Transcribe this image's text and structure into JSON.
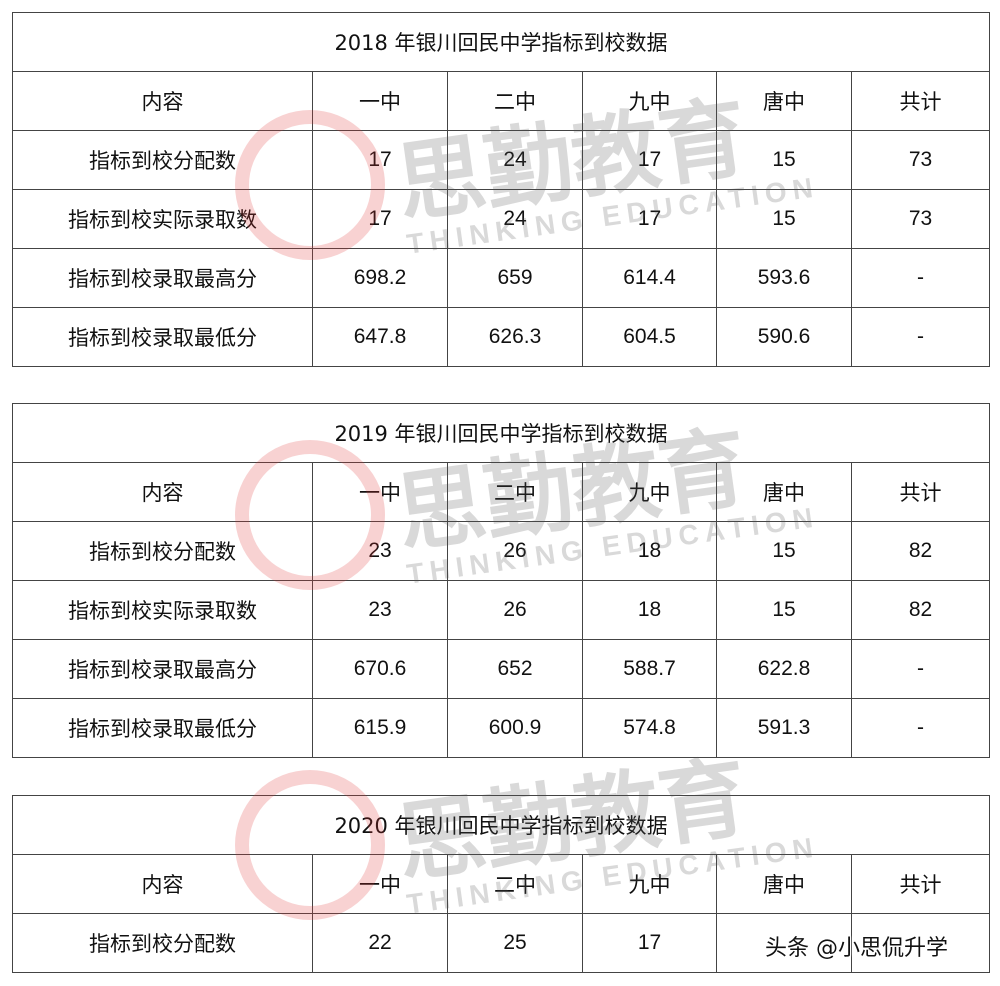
{
  "columns": [
    "内容",
    "一中",
    "二中",
    "九中",
    "唐中",
    "共计"
  ],
  "tables": [
    {
      "title": "2018 年银川回民中学指标到校数据",
      "rows": [
        [
          "指标到校分配数",
          "17",
          "24",
          "17",
          "15",
          "73"
        ],
        [
          "指标到校实际录取数",
          "17",
          "24",
          "17",
          "15",
          "73"
        ],
        [
          "指标到校录取最高分",
          "698.2",
          "659",
          "614.4",
          "593.6",
          "-"
        ],
        [
          "指标到校录取最低分",
          "647.8",
          "626.3",
          "604.5",
          "590.6",
          "-"
        ]
      ]
    },
    {
      "title": "2019 年银川回民中学指标到校数据",
      "rows": [
        [
          "指标到校分配数",
          "23",
          "26",
          "18",
          "15",
          "82"
        ],
        [
          "指标到校实际录取数",
          "23",
          "26",
          "18",
          "15",
          "82"
        ],
        [
          "指标到校录取最高分",
          "670.6",
          "652",
          "588.7",
          "622.8",
          "-"
        ],
        [
          "指标到校录取最低分",
          "615.9",
          "600.9",
          "574.8",
          "591.3",
          "-"
        ]
      ]
    },
    {
      "title": "2020 年银川回民中学指标到校数据",
      "rows": [
        [
          "指标到校分配数",
          "22",
          "25",
          "17",
          "",
          ""
        ]
      ]
    }
  ],
  "watermark": {
    "cn": "思勤教育",
    "en": "THINKING EDUCATION",
    "logo_color": "#dd3333"
  },
  "credit": "头条 @小思侃升学"
}
